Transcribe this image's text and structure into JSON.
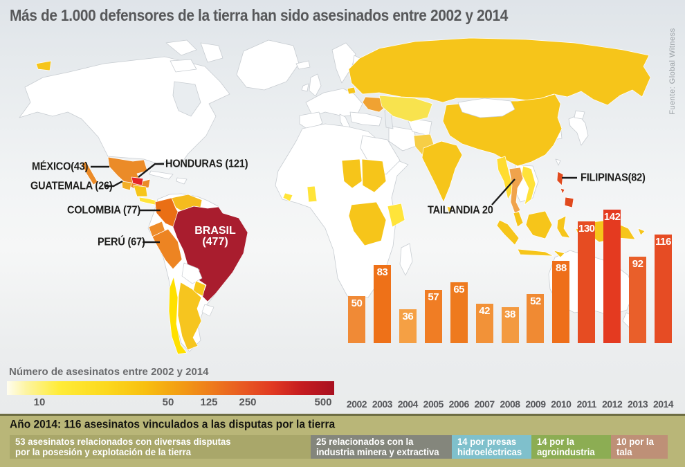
{
  "title": "Más de 1.000 defensores de la tierra han sido asesinados entre 2002 y 2014",
  "source": "Fuente: Global Witness",
  "map_labels": {
    "mexico": "MÉXICO(43)",
    "guatemala": "GUATEMALA (26)",
    "honduras": "HONDURAS (121)",
    "colombia": "COLOMBIA (77)",
    "peru": "PERÚ (67)",
    "brasil_name": "BRASIL",
    "brasil_value": "(477)",
    "filipinas": "FILIPINAS(82)",
    "tailandia": "TAILANDIA 20"
  },
  "legend": {
    "title": "Número de asesinatos entre 2002 y 2014",
    "ticks": [
      "10",
      "50",
      "125",
      "250",
      "500"
    ]
  },
  "colors": {
    "map_gold": "#F6C51A",
    "map_yellow": "#FFE43A",
    "brazil_dark_red": "#A91D2E",
    "honduras_red": "#E52528",
    "philippines_red": "#E04A1E",
    "footer_band": "#b9b678",
    "background": "#eef0f1"
  },
  "chart_data": [
    {
      "type": "choropleth_map",
      "title": "Número de asesinatos entre 2002 y 2014",
      "legend_scale": [
        10,
        50,
        125,
        250,
        500
      ],
      "countries": [
        {
          "name": "México",
          "value": 43
        },
        {
          "name": "Guatemala",
          "value": 26
        },
        {
          "name": "Honduras",
          "value": 121
        },
        {
          "name": "Colombia",
          "value": 77
        },
        {
          "name": "Perú",
          "value": 67
        },
        {
          "name": "Brasil",
          "value": 477
        },
        {
          "name": "Filipinas",
          "value": 82
        },
        {
          "name": "Tailandia",
          "value": 20
        }
      ]
    },
    {
      "type": "bar",
      "categories": [
        "2002",
        "2003",
        "2004",
        "2005",
        "2006",
        "2007",
        "2008",
        "2009",
        "2010",
        "2011",
        "2012",
        "2013",
        "2014"
      ],
      "values": [
        50,
        83,
        36,
        57,
        65,
        42,
        38,
        52,
        88,
        130,
        142,
        92,
        116
      ],
      "bar_colors": [
        "#F08A36",
        "#EE7118",
        "#F5A044",
        "#F07D24",
        "#EE7A1E",
        "#F29238",
        "#F39A40",
        "#F08A33",
        "#EE6F1A",
        "#E64C22",
        "#E43A20",
        "#E95F2A",
        "#E64C24"
      ],
      "title": "",
      "xlabel": "",
      "ylabel": "",
      "ylim": [
        0,
        150
      ],
      "value_labels": "inside bar top, white"
    },
    {
      "type": "bar",
      "subtype": "stacked-horizontal",
      "title": "Año 2014: 116 asesinatos vinculados a las disputas por la tierra",
      "total": 116,
      "segments": [
        {
          "value": 53,
          "color": "#a9a76a",
          "lines": [
            "53 asesinatos relacionados con diversas disputas",
            "por la posesión y explotación de la tierra"
          ]
        },
        {
          "value": 25,
          "color": "#84867c",
          "lines": [
            "25 relacionados con la",
            "industria minera y extractiva"
          ]
        },
        {
          "value": 14,
          "color": "#7fc0cc",
          "lines": [
            "14 por presas",
            "hidroeléctricas"
          ]
        },
        {
          "value": 14,
          "color": "#8cad53",
          "lines": [
            "14 por la",
            "agroindustria"
          ]
        },
        {
          "value": 10,
          "color": "#be9077",
          "lines": [
            "10 por la",
            "tala"
          ]
        }
      ]
    }
  ]
}
